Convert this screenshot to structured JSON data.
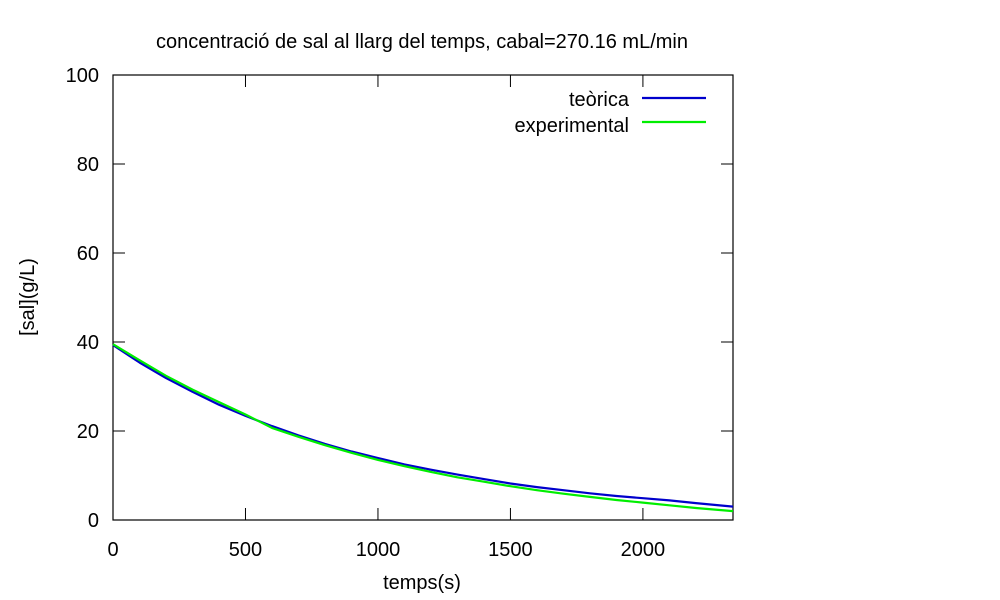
{
  "chart_data": {
    "type": "line",
    "title": "concentració de sal al llarg del temps, cabal=270.16 mL/min",
    "xlabel": "temps(s)",
    "ylabel": "[sal](g/L)",
    "xlim": [
      0,
      2340
    ],
    "ylim": [
      0,
      100
    ],
    "xticks": [
      0,
      500,
      1000,
      1500,
      2000
    ],
    "yticks": [
      0,
      20,
      40,
      60,
      80,
      100
    ],
    "grid": false,
    "legend_position": "top-right",
    "series": [
      {
        "name": "teòrica",
        "color": "#0000cc",
        "x": [
          0,
          100,
          200,
          300,
          400,
          500,
          600,
          700,
          800,
          900,
          1000,
          1100,
          1200,
          1300,
          1400,
          1500,
          1600,
          1700,
          1800,
          1900,
          2000,
          2100,
          2200,
          2340
        ],
        "y": [
          39.3,
          35.4,
          31.9,
          28.8,
          25.9,
          23.4,
          21.1,
          19.0,
          17.1,
          15.4,
          13.9,
          12.5,
          11.3,
          10.2,
          9.2,
          8.2,
          7.4,
          6.7,
          6.0,
          5.4,
          4.9,
          4.4,
          3.8,
          3.0
        ]
      },
      {
        "name": "experimental",
        "color": "#00ee00",
        "x": [
          0,
          100,
          200,
          300,
          400,
          500,
          600,
          700,
          800,
          900,
          1000,
          1100,
          1200,
          1300,
          1400,
          1500,
          1600,
          1700,
          1800,
          1900,
          2000,
          2100,
          2200,
          2340
        ],
        "y": [
          39.5,
          35.9,
          32.4,
          29.3,
          26.5,
          23.7,
          20.7,
          18.7,
          16.8,
          15.1,
          13.5,
          12.1,
          10.8,
          9.6,
          8.6,
          7.6,
          6.7,
          5.9,
          5.2,
          4.5,
          3.9,
          3.3,
          2.7,
          2.0
        ]
      }
    ]
  }
}
